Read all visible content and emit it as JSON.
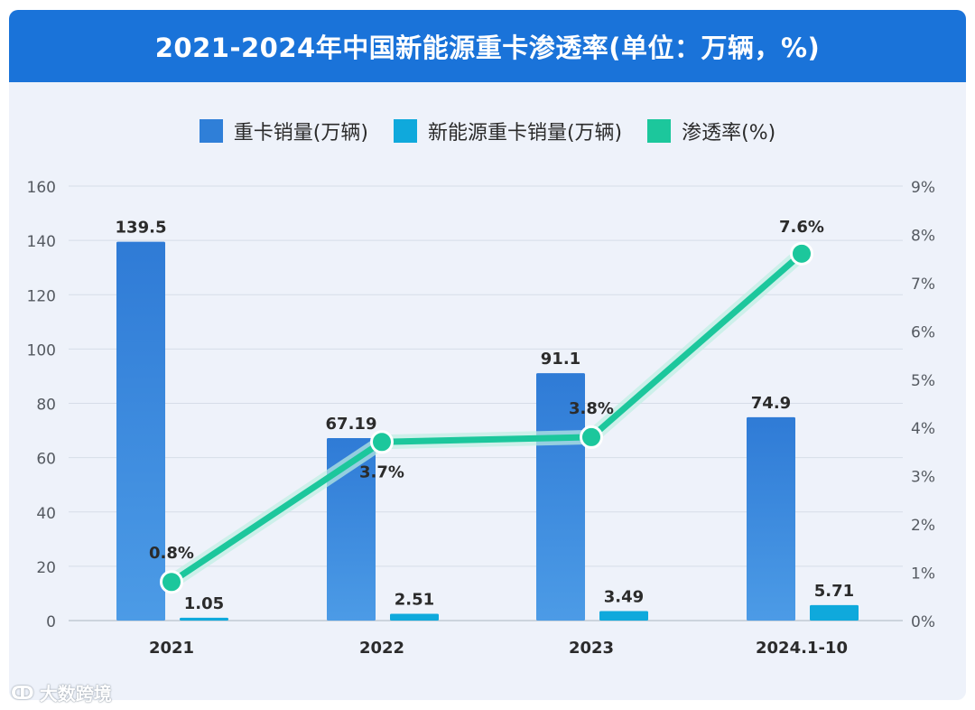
{
  "title": "2021-2024年中国新能源重卡渗透率(单位：万辆，%)",
  "legend": [
    {
      "label": "重卡销量(万辆)",
      "color": "#2f7fd8"
    },
    {
      "label": "新能源重卡销量(万辆)",
      "color": "#0fa9dc"
    },
    {
      "label": "渗透率(%)",
      "color": "#1cc79c"
    }
  ],
  "watermark": "大数跨境",
  "chart_data": {
    "type": "bar",
    "categories": [
      "2021",
      "2022",
      "2023",
      "2024.1-10"
    ],
    "series": [
      {
        "name": "重卡销量(万辆)",
        "type": "bar",
        "axis": "left",
        "values": [
          139.5,
          67.19,
          91.1,
          74.9
        ],
        "labels": [
          "139.5",
          "67.19",
          "91.1",
          "74.9"
        ],
        "color": "#2f7fd8"
      },
      {
        "name": "新能源重卡销量(万辆)",
        "type": "bar",
        "axis": "left",
        "values": [
          1.05,
          2.51,
          3.49,
          5.71
        ],
        "labels": [
          "1.05",
          "2.51",
          "3.49",
          "5.71"
        ],
        "color": "#0fa9dc"
      },
      {
        "name": "渗透率(%)",
        "type": "line",
        "axis": "right",
        "values": [
          0.8,
          3.7,
          3.8,
          7.6
        ],
        "labels": [
          "0.8%",
          "3.7%",
          "3.8%",
          "7.6%"
        ],
        "color": "#1cc79c"
      }
    ],
    "y_left": {
      "min": 0,
      "max": 160,
      "ticks": [
        "0",
        "20",
        "40",
        "60",
        "80",
        "100",
        "120",
        "140",
        "160"
      ]
    },
    "y_right": {
      "min": 0,
      "max": 9,
      "ticks": [
        "0%",
        "1%",
        "2%",
        "3%",
        "4%",
        "5%",
        "6%",
        "7%",
        "8%",
        "9%"
      ]
    },
    "grid": true,
    "legend_position": "top"
  }
}
